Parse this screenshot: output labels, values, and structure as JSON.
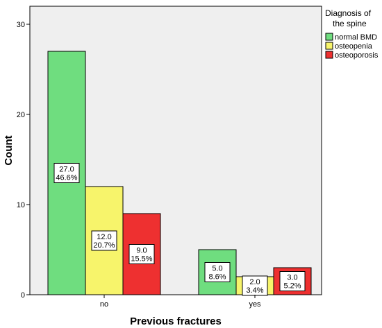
{
  "chart_data": {
    "type": "bar",
    "xlabel": "Previous fractures",
    "ylabel": "Count",
    "ylim": [
      0,
      32
    ],
    "yticks": [
      0,
      10,
      20,
      30
    ],
    "categories": [
      "no",
      "yes"
    ],
    "legend": {
      "title_lines": [
        "Diagnosis of",
        "the spine"
      ],
      "placement": "right"
    },
    "series": [
      {
        "name": "normal BMD",
        "color": "#6fdd7f",
        "values": [
          27,
          5
        ],
        "labels": [
          [
            "27.0",
            "46.6%"
          ],
          [
            "5.0",
            "8.6%"
          ]
        ]
      },
      {
        "name": "osteopenia",
        "color": "#f7f46b",
        "values": [
          12,
          2
        ],
        "labels": [
          [
            "12.0",
            "20.7%"
          ],
          [
            "2.0",
            "3.4%"
          ]
        ]
      },
      {
        "name": "osteoporosis",
        "color": "#ee3030",
        "values": [
          9,
          3
        ],
        "labels": [
          [
            "9.0",
            "15.5%"
          ],
          [
            "3.0",
            "5.2%"
          ]
        ]
      }
    ],
    "plot_background": "#efefef",
    "grid": false
  }
}
